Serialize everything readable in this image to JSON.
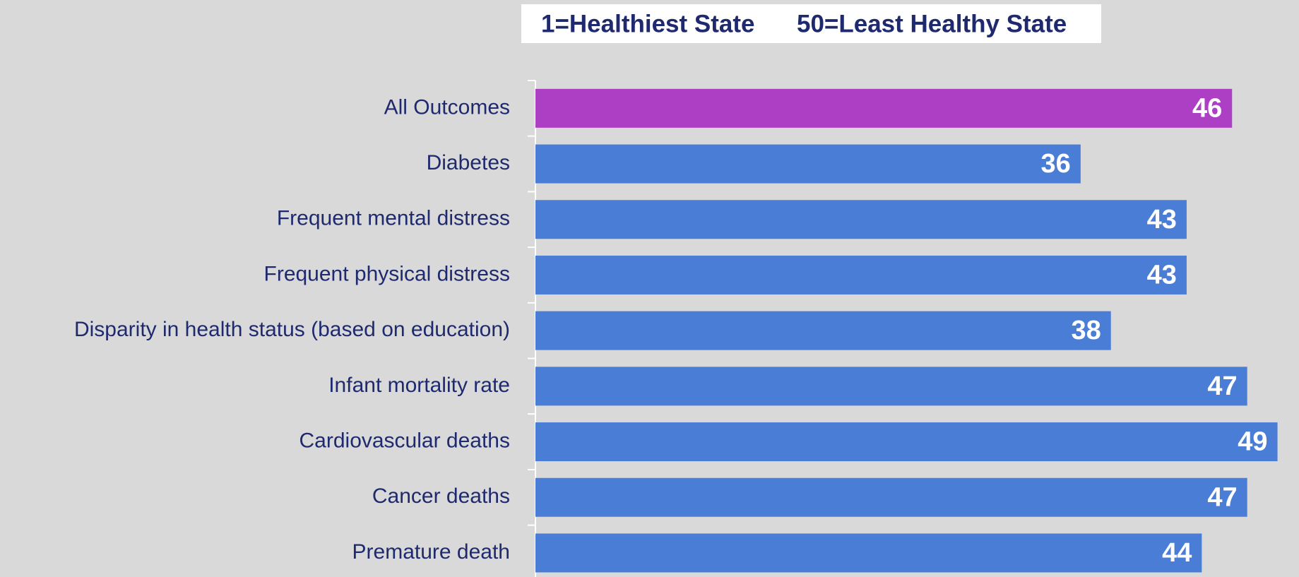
{
  "chart_data": {
    "type": "bar",
    "orientation": "horizontal",
    "note": [
      "1=Healthiest State",
      "50=Least Healthy State"
    ],
    "categories": [
      "All Outcomes",
      "Diabetes",
      "Frequent mental distress",
      "Frequent physical distress",
      "Disparity in health status (based on education)",
      "Infant mortality rate",
      "Cardiovascular deaths",
      "Cancer deaths",
      "Premature death"
    ],
    "values": [
      46,
      36,
      43,
      43,
      38,
      47,
      49,
      47,
      44
    ],
    "colors": [
      "#ad3fc4",
      "#4a7dd6",
      "#4a7dd6",
      "#4a7dd6",
      "#4a7dd6",
      "#4a7dd6",
      "#4a7dd6",
      "#4a7dd6",
      "#4a7dd6"
    ],
    "xlim": [
      0,
      50
    ]
  }
}
